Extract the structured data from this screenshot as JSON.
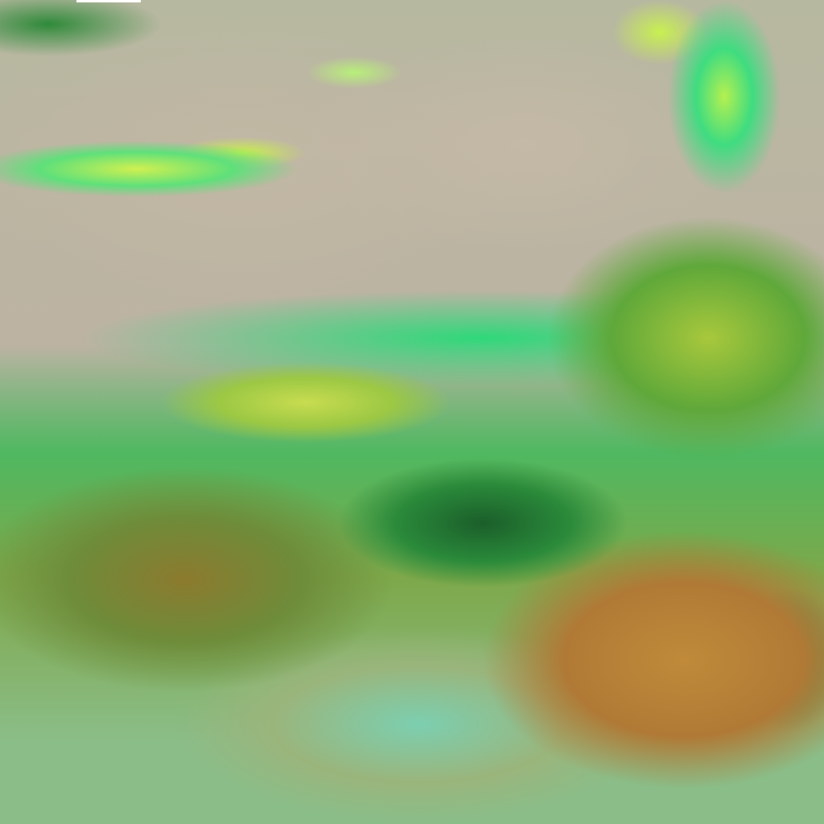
{
  "image": {
    "kind": "false-color satellite cloud imagery",
    "colors": {
      "land": "#bdb49e",
      "bright_cloud": "#c8f04a",
      "green_cloud": "#2fd36a",
      "dark_green": "#1d6b2a",
      "brown_cloud": "#9c7a2c",
      "cyan_cloud": "#6fd8c0",
      "orange_region": "#c08a3a"
    }
  }
}
